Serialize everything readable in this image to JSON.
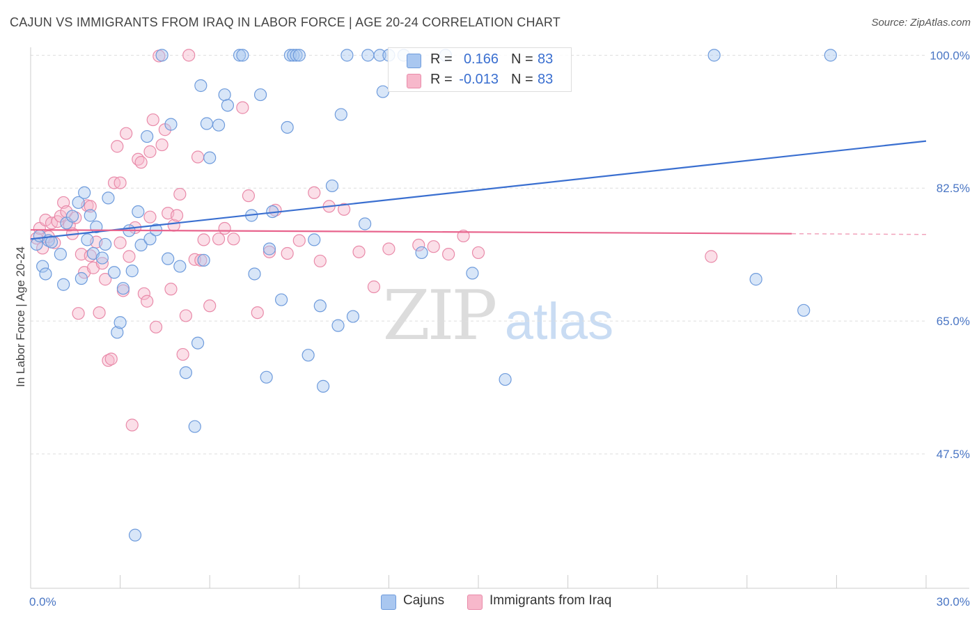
{
  "title": "CAJUN VS IMMIGRANTS FROM IRAQ IN LABOR FORCE | AGE 20-24 CORRELATION CHART",
  "source": "Source: ZipAtlas.com",
  "watermark": {
    "zip": "ZIP",
    "atlas": "atlas"
  },
  "colors": {
    "cajun_fill": "#a9c7f0",
    "cajun_stroke": "#6e9bdc",
    "cajun_line": "#3a6fd0",
    "iraq_fill": "#f7b8cb",
    "iraq_stroke": "#e98aa9",
    "iraq_line": "#e8648d",
    "grid": "#dddddd",
    "tick_text": "#4a76c4"
  },
  "legend": {
    "rows": [
      {
        "r_label": "R =",
        "r_value": "0.166",
        "n_label": "N =",
        "n_value": "83"
      },
      {
        "r_label": "R =",
        "r_value": "-0.013",
        "n_label": "N =",
        "n_value": "83"
      }
    ]
  },
  "bottom_legend": {
    "cajuns": "Cajuns",
    "iraq": "Immigrants from Iraq"
  },
  "chart_data": {
    "type": "scatter",
    "xlabel": "",
    "ylabel": "In Labor Force | Age 20-24",
    "xlim": [
      0,
      30
    ],
    "ylim": [
      29.8,
      101.5
    ],
    "x_tick_labels": [
      "0.0%",
      "30.0%"
    ],
    "y_ticks": [
      {
        "value": 47.5,
        "label": "47.5%"
      },
      {
        "value": 65.0,
        "label": "65.0%"
      },
      {
        "value": 82.5,
        "label": "82.5%"
      },
      {
        "value": 100.0,
        "label": "100.0%"
      }
    ],
    "grid": "horizontal dashed",
    "legend_position": "top-center",
    "series": [
      {
        "name": "Cajuns",
        "trend": {
          "x": [
            0,
            30
          ],
          "y": [
            75.8,
            88.7
          ]
        },
        "points": [
          [
            0.2,
            75.1
          ],
          [
            0.3,
            76.2
          ],
          [
            0.4,
            72.2
          ],
          [
            0.5,
            71.2
          ],
          [
            0.6,
            75.6
          ],
          [
            0.7,
            75.4
          ],
          [
            1.0,
            73.8
          ],
          [
            1.1,
            69.8
          ],
          [
            1.2,
            77.9
          ],
          [
            1.4,
            78.8
          ],
          [
            1.6,
            80.6
          ],
          [
            1.7,
            70.6
          ],
          [
            1.8,
            81.9
          ],
          [
            1.9,
            75.7
          ],
          [
            2.0,
            78.9
          ],
          [
            2.1,
            73.9
          ],
          [
            2.2,
            77.4
          ],
          [
            2.4,
            73.3
          ],
          [
            2.5,
            75.1
          ],
          [
            2.6,
            81.2
          ],
          [
            2.8,
            71.4
          ],
          [
            2.9,
            63.5
          ],
          [
            3.0,
            64.8
          ],
          [
            3.1,
            69.3
          ],
          [
            3.3,
            76.9
          ],
          [
            3.4,
            71.6
          ],
          [
            3.5,
            36.8
          ],
          [
            3.6,
            79.4
          ],
          [
            3.7,
            75.0
          ],
          [
            3.9,
            89.3
          ],
          [
            4.0,
            75.8
          ],
          [
            4.2,
            77.0
          ],
          [
            4.4,
            100.0
          ],
          [
            4.6,
            73.2
          ],
          [
            4.7,
            90.9
          ],
          [
            5.0,
            72.2
          ],
          [
            5.2,
            58.2
          ],
          [
            5.5,
            51.1
          ],
          [
            5.6,
            62.1
          ],
          [
            5.7,
            96.0
          ],
          [
            5.8,
            73.0
          ],
          [
            5.9,
            91.0
          ],
          [
            6.0,
            86.5
          ],
          [
            6.3,
            90.8
          ],
          [
            6.5,
            94.8
          ],
          [
            6.6,
            93.4
          ],
          [
            7.0,
            100.0
          ],
          [
            7.1,
            100.0
          ],
          [
            7.4,
            78.9
          ],
          [
            7.5,
            71.2
          ],
          [
            7.7,
            94.8
          ],
          [
            7.9,
            57.6
          ],
          [
            8.0,
            74.5
          ],
          [
            8.1,
            79.4
          ],
          [
            8.4,
            67.8
          ],
          [
            8.6,
            90.5
          ],
          [
            8.7,
            100.0
          ],
          [
            8.8,
            100.0
          ],
          [
            8.9,
            100.0
          ],
          [
            9.0,
            100.0
          ],
          [
            9.3,
            60.5
          ],
          [
            9.5,
            75.7
          ],
          [
            9.7,
            67.0
          ],
          [
            9.8,
            56.4
          ],
          [
            10.1,
            82.8
          ],
          [
            10.3,
            64.4
          ],
          [
            10.4,
            92.2
          ],
          [
            10.6,
            100.0
          ],
          [
            10.8,
            65.6
          ],
          [
            11.2,
            77.8
          ],
          [
            11.3,
            100.0
          ],
          [
            11.7,
            100.0
          ],
          [
            11.8,
            95.2
          ],
          [
            12.0,
            100.0
          ],
          [
            12.5,
            100.0
          ],
          [
            13.1,
            74.0
          ],
          [
            13.9,
            100.0
          ],
          [
            14.8,
            71.3
          ],
          [
            15.9,
            57.3
          ],
          [
            22.9,
            100.0
          ],
          [
            24.3,
            70.5
          ],
          [
            25.9,
            66.4
          ],
          [
            26.8,
            100.0
          ]
        ]
      },
      {
        "name": "Immigrants from Iraq",
        "trend": {
          "x": [
            0,
            25.5
          ],
          "y": [
            77.0,
            76.5
          ]
        },
        "trend_dashed": {
          "x": [
            25.5,
            30
          ],
          "y": [
            76.5,
            76.4
          ]
        },
        "points": [
          [
            0.2,
            75.9
          ],
          [
            0.3,
            77.2
          ],
          [
            0.4,
            74.6
          ],
          [
            0.5,
            78.3
          ],
          [
            0.6,
            76.1
          ],
          [
            0.7,
            77.9
          ],
          [
            0.8,
            75.3
          ],
          [
            0.9,
            78.1
          ],
          [
            1.0,
            78.8
          ],
          [
            1.1,
            80.6
          ],
          [
            1.2,
            79.4
          ],
          [
            1.3,
            77.6
          ],
          [
            1.4,
            76.5
          ],
          [
            1.5,
            78.6
          ],
          [
            1.6,
            66.0
          ],
          [
            1.7,
            73.8
          ],
          [
            1.8,
            71.4
          ],
          [
            1.9,
            80.2
          ],
          [
            2.0,
            73.6
          ],
          [
            2.1,
            72.0
          ],
          [
            2.2,
            75.4
          ],
          [
            2.3,
            66.1
          ],
          [
            2.4,
            72.6
          ],
          [
            2.5,
            70.5
          ],
          [
            2.6,
            59.8
          ],
          [
            2.7,
            60.0
          ],
          [
            2.8,
            83.2
          ],
          [
            2.9,
            88.0
          ],
          [
            3.0,
            75.3
          ],
          [
            3.1,
            69.0
          ],
          [
            3.2,
            89.7
          ],
          [
            3.3,
            73.5
          ],
          [
            3.4,
            51.3
          ],
          [
            3.5,
            77.3
          ],
          [
            3.6,
            86.3
          ],
          [
            3.7,
            85.9
          ],
          [
            3.8,
            68.6
          ],
          [
            3.9,
            67.6
          ],
          [
            4.0,
            78.7
          ],
          [
            4.1,
            91.5
          ],
          [
            4.2,
            64.2
          ],
          [
            4.3,
            99.9
          ],
          [
            4.4,
            88.2
          ],
          [
            4.5,
            90.2
          ],
          [
            4.6,
            79.2
          ],
          [
            4.7,
            69.2
          ],
          [
            4.8,
            77.6
          ],
          [
            4.9,
            78.9
          ],
          [
            5.0,
            81.7
          ],
          [
            5.1,
            60.6
          ],
          [
            5.2,
            65.7
          ],
          [
            5.3,
            100.0
          ],
          [
            5.5,
            73.1
          ],
          [
            5.6,
            86.6
          ],
          [
            5.7,
            73.0
          ],
          [
            5.8,
            75.7
          ],
          [
            6.0,
            67.0
          ],
          [
            6.3,
            75.8
          ],
          [
            6.5,
            77.2
          ],
          [
            6.8,
            75.8
          ],
          [
            7.1,
            93.1
          ],
          [
            7.3,
            81.5
          ],
          [
            7.6,
            66.1
          ],
          [
            8.0,
            74.1
          ],
          [
            8.2,
            79.6
          ],
          [
            8.6,
            73.9
          ],
          [
            9.0,
            75.6
          ],
          [
            9.5,
            81.9
          ],
          [
            9.7,
            72.9
          ],
          [
            10.0,
            80.1
          ],
          [
            10.5,
            79.7
          ],
          [
            11.0,
            74.1
          ],
          [
            11.5,
            69.5
          ],
          [
            12.0,
            74.5
          ],
          [
            13.0,
            75.0
          ],
          [
            13.5,
            74.8
          ],
          [
            14.0,
            73.8
          ],
          [
            14.5,
            76.2
          ],
          [
            15.0,
            74.0
          ],
          [
            22.8,
            73.5
          ],
          [
            2.0,
            80.1
          ],
          [
            3.0,
            83.2
          ],
          [
            4.0,
            87.3
          ]
        ]
      }
    ]
  }
}
